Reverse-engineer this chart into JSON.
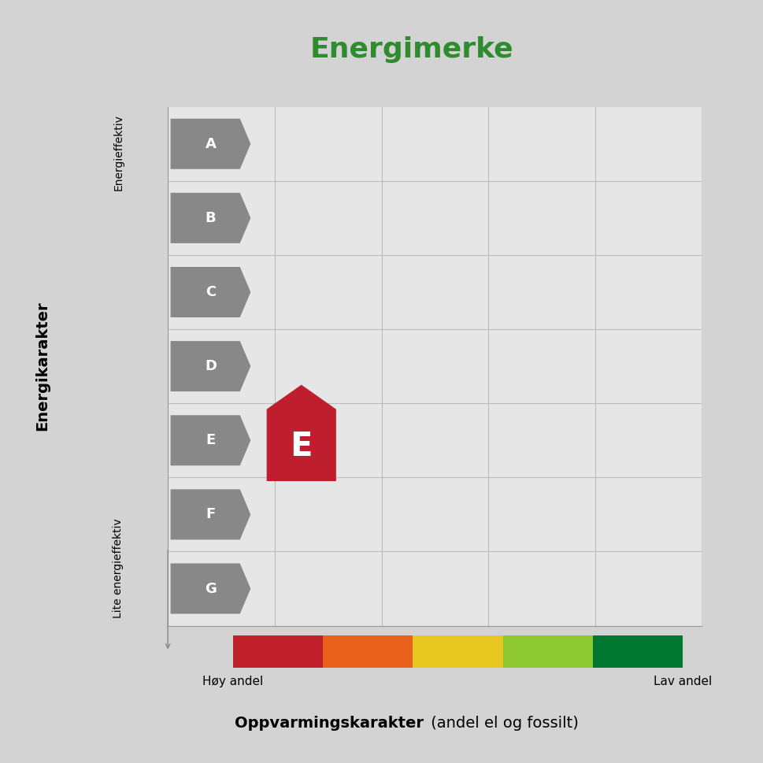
{
  "title": "Energimerke",
  "title_color": "#2e8b2e",
  "title_fontsize": 26,
  "background_color": "#d3d3d3",
  "plot_bg_color": "#e6e6e6",
  "grid_color": "#bbbbbb",
  "ylabel": "Energikarakter",
  "xlabel_bold": "Oppvarmingskarakter",
  "xlabel_normal": " (andel el og fossilt)",
  "x_label_left": "Høy andel",
  "x_label_right": "Lav andel",
  "y_label_top": "Energieffektiv",
  "y_label_bottom": "Lite energieffektiv",
  "energy_labels": [
    "A",
    "B",
    "C",
    "D",
    "E",
    "F",
    "G"
  ],
  "arrow_color": "#888888",
  "arrow_text_color": "#ffffff",
  "selected_label": "E",
  "selected_color": "#be1e2d",
  "heat_bar_colors": [
    "#c0202a",
    "#e8601a",
    "#e8c820",
    "#8ec830",
    "#007830"
  ]
}
